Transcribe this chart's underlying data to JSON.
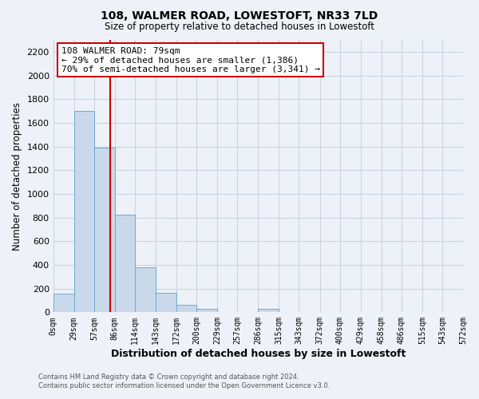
{
  "title": "108, WALMER ROAD, LOWESTOFT, NR33 7LD",
  "subtitle": "Size of property relative to detached houses in Lowestoft",
  "xlabel": "Distribution of detached houses by size in Lowestoft",
  "ylabel": "Number of detached properties",
  "bar_color": "#c9d9ea",
  "bar_edge_color": "#6aaad4",
  "grid_color": "#c8d4e4",
  "background_color": "#eef2f8",
  "vline_color": "#cc0000",
  "vline_x": 79,
  "annotation_line1": "108 WALMER ROAD: 79sqm",
  "annotation_line2": "← 29% of detached houses are smaller (1,386)",
  "annotation_line3": "70% of semi-detached houses are larger (3,341) →",
  "annotation_box_color": "#ffffff",
  "annotation_box_edge_color": "#cc0000",
  "bin_edges": [
    0,
    29,
    57,
    86,
    114,
    143,
    172,
    200,
    229,
    257,
    286,
    315,
    343,
    372,
    400,
    429,
    458,
    486,
    515,
    543,
    572
  ],
  "bin_counts": [
    155,
    1700,
    1390,
    825,
    380,
    165,
    65,
    30,
    0,
    0,
    30,
    0,
    0,
    0,
    0,
    0,
    0,
    0,
    0,
    0
  ],
  "ylim": [
    0,
    2300
  ],
  "yticks": [
    0,
    200,
    400,
    600,
    800,
    1000,
    1200,
    1400,
    1600,
    1800,
    2000,
    2200
  ],
  "footer_line1": "Contains HM Land Registry data © Crown copyright and database right 2024.",
  "footer_line2": "Contains public sector information licensed under the Open Government Licence v3.0."
}
